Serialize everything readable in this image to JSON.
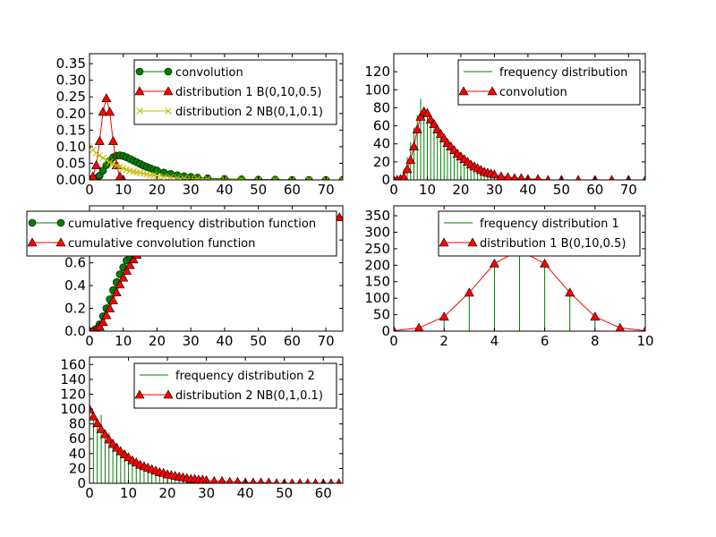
{
  "chart_data": [
    {
      "type": "line",
      "xlim": [
        0,
        75
      ],
      "ylim": [
        0,
        0.38
      ],
      "xticks": [
        0,
        10,
        20,
        30,
        40,
        50,
        60,
        70
      ],
      "xtick_labels": [
        "0",
        "10",
        "20",
        "30",
        "40",
        "50",
        "60",
        "70"
      ],
      "yticks": [
        0,
        0.05,
        0.1,
        0.15,
        0.2,
        0.25,
        0.3,
        0.35
      ],
      "ytick_labels": [
        "0.00",
        "0.05",
        "0.10",
        "0.15",
        "0.20",
        "0.25",
        "0.30",
        "0.35"
      ],
      "legend_position": "top-right",
      "series": [
        {
          "name": "convolution",
          "color": "#008000",
          "marker": "circle",
          "linestyle": "solid",
          "x": [
            1,
            2,
            3,
            4,
            5,
            6,
            7,
            8,
            9,
            10,
            11,
            12,
            13,
            14,
            15,
            16,
            17,
            18,
            19,
            20,
            22,
            24,
            26,
            28,
            30,
            32,
            35,
            40,
            45,
            50,
            55,
            60,
            65,
            70,
            75
          ],
          "y": [
            0.0,
            0.005,
            0.013,
            0.028,
            0.045,
            0.058,
            0.068,
            0.073,
            0.074,
            0.072,
            0.068,
            0.063,
            0.058,
            0.053,
            0.048,
            0.043,
            0.039,
            0.035,
            0.031,
            0.028,
            0.022,
            0.018,
            0.014,
            0.011,
            0.009,
            0.007,
            0.005,
            0.003,
            0.002,
            0.001,
            0.001,
            0.0,
            0.0,
            0.0,
            0.0
          ]
        },
        {
          "name": "distribution 1 B(0,10,0.5)",
          "color": "#ff0000",
          "marker": "triangle",
          "linestyle": "solid",
          "x": [
            0,
            1,
            2,
            3,
            4,
            5,
            6,
            7,
            8,
            9,
            10
          ],
          "y": [
            0.001,
            0.01,
            0.044,
            0.117,
            0.205,
            0.246,
            0.205,
            0.117,
            0.044,
            0.01,
            0.001
          ]
        },
        {
          "name": "distribution 2 NB(0,1,0.1)",
          "color": "#bfbf00",
          "marker": "x",
          "linestyle": "solid",
          "x": [
            0,
            1,
            2,
            3,
            4,
            5,
            6,
            7,
            8,
            9,
            10,
            11,
            12,
            13,
            14,
            15,
            16,
            17,
            18,
            19,
            20,
            22,
            24,
            26,
            28,
            30,
            32,
            35,
            40,
            45,
            50,
            55,
            60,
            65,
            70,
            75
          ],
          "y": [
            0.1,
            0.09,
            0.081,
            0.073,
            0.066,
            0.059,
            0.053,
            0.048,
            0.043,
            0.039,
            0.035,
            0.031,
            0.028,
            0.025,
            0.023,
            0.021,
            0.019,
            0.017,
            0.015,
            0.014,
            0.012,
            0.01,
            0.008,
            0.006,
            0.005,
            0.004,
            0.003,
            0.002,
            0.001,
            0.001,
            0.0,
            0.0,
            0.0,
            0.0,
            0.0,
            0.0
          ]
        }
      ]
    },
    {
      "type": "line",
      "xlim": [
        0,
        75
      ],
      "ylim": [
        0,
        140
      ],
      "xticks": [
        0,
        10,
        20,
        30,
        40,
        50,
        60,
        70
      ],
      "xtick_labels": [
        "0",
        "10",
        "20",
        "30",
        "40",
        "50",
        "60",
        "70"
      ],
      "yticks": [
        0,
        20,
        40,
        60,
        80,
        100,
        120
      ],
      "ytick_labels": [
        "0",
        "20",
        "40",
        "60",
        "80",
        "100",
        "120"
      ],
      "legend_position": "top-right",
      "series": [
        {
          "name": "frequency distribution",
          "color": "#008000",
          "marker": "none",
          "linestyle": "stems",
          "x": [
            2,
            3,
            4,
            5,
            6,
            7,
            8,
            9,
            10,
            11,
            12,
            13,
            14,
            15,
            16,
            17,
            18,
            19,
            20,
            21,
            22,
            23,
            24,
            25,
            26,
            27,
            28,
            29,
            30,
            32,
            34,
            36,
            38,
            40,
            45,
            50
          ],
          "y": [
            4,
            12,
            25,
            42,
            58,
            72,
            90,
            78,
            74,
            64,
            60,
            54,
            49,
            45,
            40,
            36,
            32,
            29,
            26,
            23,
            20,
            18,
            16,
            14,
            12,
            10,
            9,
            8,
            7,
            5,
            4,
            3,
            2,
            2,
            1,
            1
          ]
        },
        {
          "name": "convolution",
          "color": "#ff0000",
          "marker": "triangle",
          "linestyle": "solid",
          "x": [
            0,
            1,
            2,
            3,
            4,
            5,
            6,
            7,
            8,
            9,
            10,
            11,
            12,
            13,
            14,
            15,
            16,
            17,
            18,
            19,
            20,
            21,
            22,
            23,
            24,
            25,
            26,
            27,
            28,
            29,
            30,
            32,
            34,
            36,
            38,
            40,
            43,
            46,
            50,
            55,
            60,
            65,
            70,
            75
          ],
          "y": [
            0,
            0,
            1,
            3,
            12,
            22,
            37,
            56,
            70,
            76,
            74,
            67,
            62,
            56,
            51,
            46,
            41,
            37,
            33,
            29,
            26,
            23,
            20,
            17,
            15,
            13,
            11,
            9,
            8,
            7,
            6,
            4,
            3,
            2,
            2,
            1,
            1,
            0,
            0,
            0,
            0,
            0,
            0,
            0
          ]
        }
      ]
    },
    {
      "type": "line",
      "xlim": [
        0,
        75
      ],
      "ylim": [
        0,
        1.1
      ],
      "xticks": [
        0,
        10,
        20,
        30,
        40,
        50,
        60,
        70
      ],
      "xtick_labels": [
        "0",
        "10",
        "20",
        "30",
        "40",
        "50",
        "60",
        "70"
      ],
      "yticks": [
        0,
        0.2,
        0.4,
        0.6,
        0.8,
        1.0
      ],
      "ytick_labels": [
        "0.0",
        "0.2",
        "0.4",
        "0.6",
        "0.8",
        "1.0"
      ],
      "legend_position": "top-left",
      "series": [
        {
          "name": "cumulative frequency distribution function",
          "color": "#008000",
          "marker": "circle",
          "linestyle": "solid",
          "x": [
            0,
            1,
            2,
            3,
            4,
            5,
            6,
            7,
            8,
            9,
            10,
            11,
            12,
            13,
            14,
            15,
            16,
            17,
            18,
            19,
            20,
            22,
            24,
            26,
            28,
            30,
            32,
            35,
            38,
            41,
            44,
            47,
            50,
            55,
            60
          ],
          "y": [
            0.0,
            0.0,
            0.02,
            0.06,
            0.13,
            0.2,
            0.28,
            0.36,
            0.43,
            0.5,
            0.56,
            0.62,
            0.66,
            0.7,
            0.74,
            0.77,
            0.8,
            0.83,
            0.85,
            0.87,
            0.89,
            0.92,
            0.94,
            0.96,
            0.97,
            0.98,
            0.98,
            0.99,
            0.99,
            1.0,
            1.0,
            1.0,
            1.0,
            1.0,
            1.0
          ]
        },
        {
          "name": "cumulative convolution function",
          "color": "#ff0000",
          "marker": "triangle",
          "linestyle": "solid",
          "x": [
            0,
            1,
            2,
            3,
            4,
            5,
            6,
            7,
            8,
            9,
            10,
            11,
            12,
            13,
            14,
            15,
            16,
            17,
            18,
            19,
            20,
            21,
            22,
            23,
            24,
            25,
            26,
            27,
            28,
            29,
            30,
            32,
            34,
            36,
            38,
            40,
            42,
            44,
            46,
            48,
            50,
            52,
            54,
            56,
            58,
            60,
            62,
            64,
            66,
            68,
            70,
            72,
            74
          ],
          "y": [
            0.0,
            0.0,
            0.01,
            0.04,
            0.08,
            0.14,
            0.2,
            0.27,
            0.34,
            0.41,
            0.47,
            0.53,
            0.58,
            0.63,
            0.67,
            0.71,
            0.74,
            0.77,
            0.8,
            0.83,
            0.85,
            0.87,
            0.88,
            0.9,
            0.91,
            0.92,
            0.93,
            0.94,
            0.95,
            0.96,
            0.96,
            0.97,
            0.98,
            0.98,
            0.99,
            0.99,
            0.99,
            1.0,
            1.0,
            1.0,
            1.0,
            1.0,
            1.0,
            1.0,
            1.0,
            1.0,
            1.0,
            1.0,
            1.0,
            1.0,
            1.0,
            1.0,
            1.0
          ]
        }
      ]
    },
    {
      "type": "line",
      "xlim": [
        0,
        10
      ],
      "ylim": [
        0,
        380
      ],
      "xticks": [
        0,
        2,
        4,
        6,
        8,
        10
      ],
      "xtick_labels": [
        "0",
        "2",
        "4",
        "6",
        "8",
        "10"
      ],
      "yticks": [
        0,
        50,
        100,
        150,
        200,
        250,
        300,
        350
      ],
      "ytick_labels": [
        "0",
        "50",
        "100",
        "150",
        "200",
        "250",
        "300",
        "350"
      ],
      "legend_position": "top-right",
      "series": [
        {
          "name": "frequency distribution 1",
          "color": "#008000",
          "marker": "none",
          "linestyle": "stems",
          "x": [
            0,
            1,
            2,
            3,
            4,
            5,
            6,
            7,
            8,
            9,
            10
          ],
          "y": [
            1,
            10,
            42,
            120,
            210,
            250,
            205,
            115,
            44,
            9,
            1
          ]
        },
        {
          "name": "distribution 1 B(0,10,0.5)",
          "color": "#ff0000",
          "marker": "triangle",
          "linestyle": "solid",
          "x": [
            0,
            1,
            2,
            3,
            4,
            5,
            6,
            7,
            8,
            9,
            10
          ],
          "y": [
            1,
            10,
            44,
            117,
            205,
            246,
            205,
            117,
            44,
            10,
            1
          ]
        }
      ]
    },
    {
      "type": "line",
      "xlim": [
        0,
        65
      ],
      "ylim": [
        0,
        170
      ],
      "xticks": [
        0,
        10,
        20,
        30,
        40,
        50,
        60
      ],
      "xtick_labels": [
        "0",
        "10",
        "20",
        "30",
        "40",
        "50",
        "60"
      ],
      "yticks": [
        0,
        20,
        40,
        60,
        80,
        100,
        120,
        140,
        160
      ],
      "ytick_labels": [
        "0",
        "20",
        "40",
        "60",
        "80",
        "100",
        "120",
        "140",
        "160"
      ],
      "legend_position": "top-right",
      "series": [
        {
          "name": "frequency distribution 2",
          "color": "#008000",
          "marker": "none",
          "linestyle": "stems",
          "x": [
            0,
            1,
            2,
            3,
            4,
            5,
            6,
            7,
            8,
            9,
            10,
            11,
            12,
            13,
            14,
            15,
            16,
            17,
            18,
            19,
            20,
            21,
            22,
            23,
            24,
            25,
            26,
            27,
            28,
            30,
            32,
            34,
            36,
            38,
            40,
            44
          ],
          "y": [
            96,
            85,
            80,
            92,
            72,
            68,
            60,
            54,
            50,
            44,
            38,
            35,
            30,
            28,
            25,
            22,
            20,
            18,
            16,
            14,
            12,
            11,
            10,
            9,
            8,
            7,
            6,
            5,
            5,
            4,
            3,
            2,
            2,
            1,
            1,
            1
          ]
        },
        {
          "name": "distribution 2 NB(0,1,0.1)",
          "color": "#ff0000",
          "marker": "triangle",
          "linestyle": "solid",
          "x": [
            0,
            1,
            2,
            3,
            4,
            5,
            6,
            7,
            8,
            9,
            10,
            11,
            12,
            13,
            14,
            15,
            16,
            17,
            18,
            19,
            20,
            21,
            22,
            23,
            24,
            25,
            26,
            27,
            28,
            29,
            30,
            32,
            34,
            36,
            38,
            40,
            42,
            44,
            46,
            48,
            50,
            52,
            54,
            56,
            58,
            60,
            62,
            64
          ],
          "y": [
            100,
            90,
            81,
            73,
            66,
            59,
            53,
            48,
            43,
            39,
            35,
            31,
            28,
            25,
            23,
            21,
            19,
            17,
            15,
            14,
            12,
            11,
            10,
            9,
            8,
            7,
            6,
            6,
            5,
            5,
            4,
            3,
            3,
            2,
            2,
            1,
            1,
            1,
            1,
            0,
            0,
            0,
            0,
            0,
            0,
            0,
            0,
            0
          ]
        }
      ]
    }
  ]
}
